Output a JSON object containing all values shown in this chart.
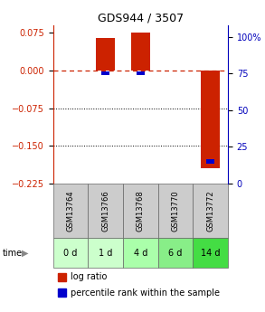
{
  "title": "GDS944 / 3507",
  "samples": [
    "GSM13764",
    "GSM13766",
    "GSM13768",
    "GSM13770",
    "GSM13772"
  ],
  "time_labels": [
    "0 d",
    "1 d",
    "4 d",
    "6 d",
    "14 d"
  ],
  "log_ratio": [
    0.0,
    0.065,
    0.075,
    0.0,
    -0.195
  ],
  "percentile_rank": [
    0.0,
    75.0,
    75.0,
    0.0,
    15.0
  ],
  "ylim_left": [
    -0.225,
    0.09
  ],
  "ylim_right": [
    0,
    108
  ],
  "yticks_left": [
    0.075,
    0.0,
    -0.075,
    -0.15,
    -0.225
  ],
  "yticks_right": [
    100,
    75,
    50,
    25,
    0
  ],
  "bar_width": 0.55,
  "bar_color_red": "#cc2200",
  "bar_color_blue": "#0000cc",
  "time_bg_colors": [
    "#ccffcc",
    "#ccffcc",
    "#aaffaa",
    "#88ee88",
    "#44dd44"
  ],
  "sample_bg_color": "#cccccc",
  "zero_line_color": "#cc2200",
  "dotted_line_color": "#000000",
  "right_axis_color": "#0000bb",
  "left_axis_color": "#cc2200",
  "title_fontsize": 9,
  "tick_fontsize": 7,
  "legend_fontsize": 7
}
